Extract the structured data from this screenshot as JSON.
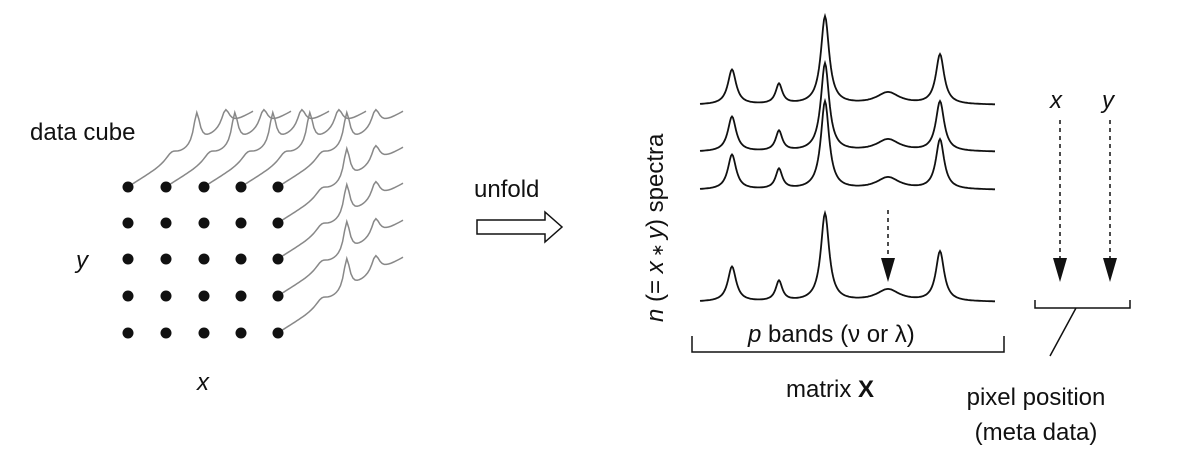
{
  "cube": {
    "title": "data cube",
    "axis_y": "y",
    "axis_x": "x"
  },
  "operation": "unfold",
  "matrix": {
    "rows_label": {
      "parts": [
        "n",
        " (= ",
        "x",
        " ∗ ",
        "y",
        ") spectra"
      ]
    },
    "columns_label": {
      "parts": [
        "p",
        " bands (ν or λ)"
      ]
    },
    "caption": {
      "parts": [
        "matrix ",
        "X"
      ]
    }
  },
  "meta": {
    "col_x": "x",
    "col_y": "y",
    "caption_line1": "pixel position",
    "caption_line2": "(meta data)"
  }
}
